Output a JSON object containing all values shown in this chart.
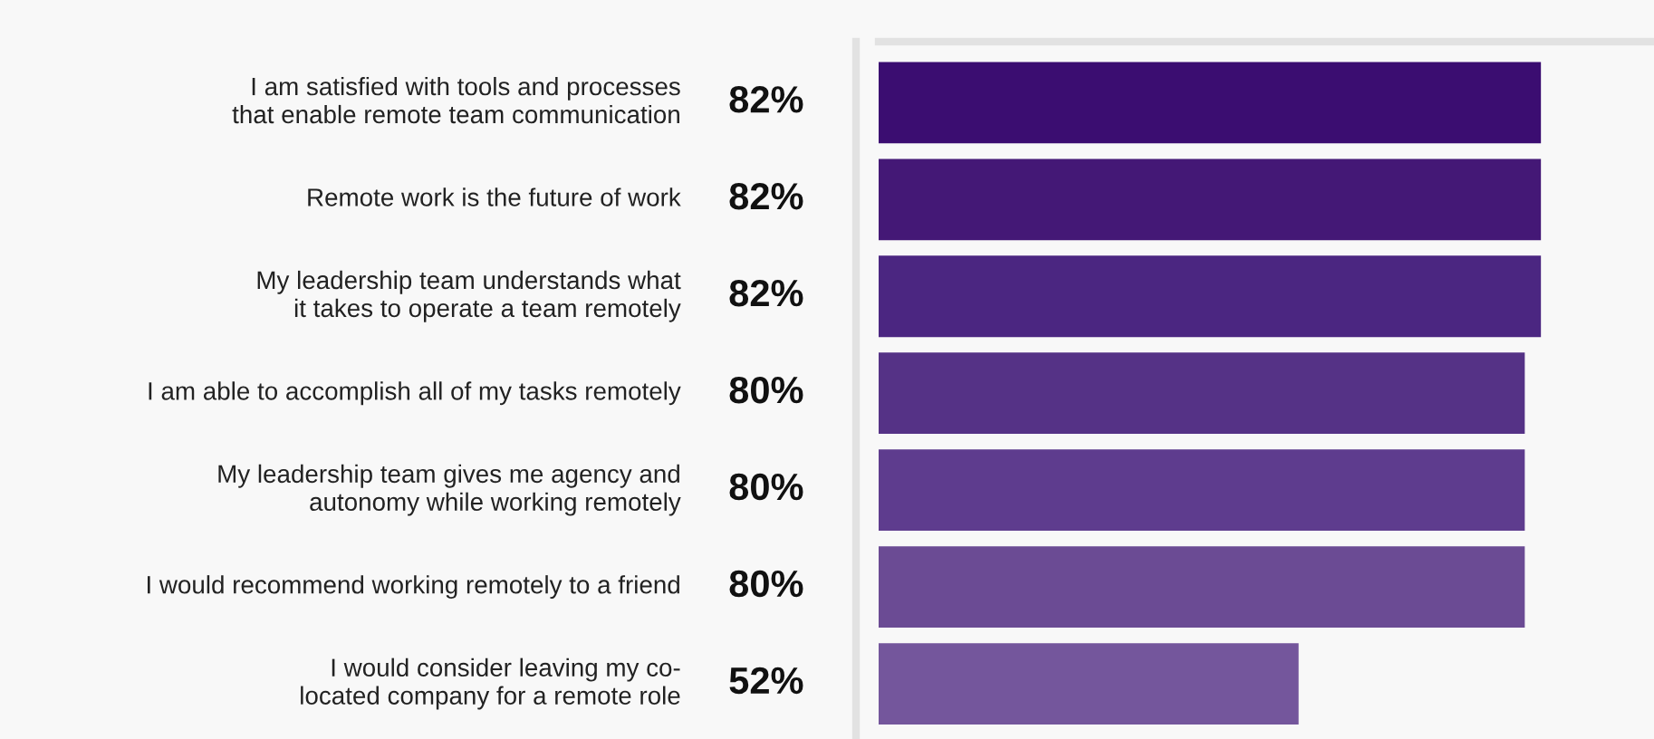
{
  "chart_data": {
    "type": "bar",
    "orientation": "horizontal",
    "categories": [
      "I am satisfied with tools and processes\nthat enable remote team communication",
      "Remote work is the future of work",
      "My leadership team understands what\nit takes to operate a team remotely",
      "I am able to accomplish all of my tasks remotely",
      "My leadership team gives me agency and\nautonomy while working remotely",
      "I would recommend working remotely to a friend",
      "I would consider leaving my co-\nlocated company for a remote role"
    ],
    "values": [
      82,
      82,
      82,
      80,
      80,
      80,
      52
    ],
    "value_labels": [
      "82%",
      "82%",
      "82%",
      "80%",
      "80%",
      "80%",
      "52%"
    ],
    "colors": [
      "#3b0d71",
      "#441876",
      "#4b2681",
      "#553286",
      "#5e3c8e",
      "#6b4b94",
      "#74569c"
    ],
    "xlim": [
      0,
      96
    ]
  }
}
